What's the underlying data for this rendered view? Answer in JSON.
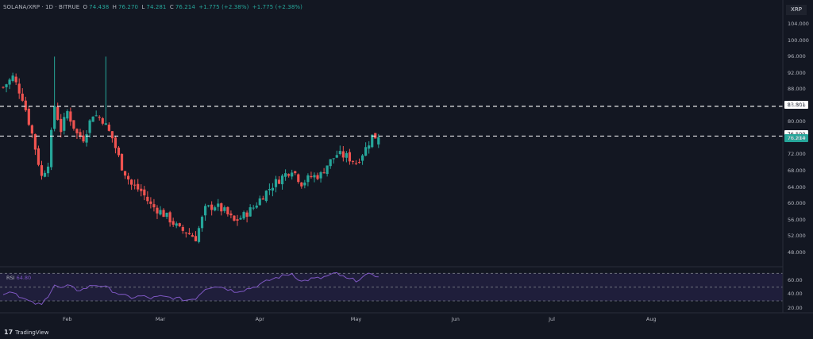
{
  "header": {
    "symbol": "SOLANA/XRP · 1D · BITRUE",
    "open_label": "O",
    "open": "74.438",
    "high_label": "H",
    "high": "76.270",
    "low_label": "L",
    "low": "74.281",
    "close_label": "C",
    "close": "76.214",
    "change": "+1.775 (+2.38%)",
    "change2": "+1.775 (+2.38%)"
  },
  "symbol_badge": "XRP",
  "price_tags": {
    "level_upper": "83.801",
    "level_lower": "76.500",
    "last_price": "76.214"
  },
  "rsi": {
    "label": "RSI",
    "value": "64.80"
  },
  "footer": {
    "brand": "TradingView",
    "logo": "17"
  },
  "colors": {
    "background": "#131722",
    "up": "#26a69a",
    "down": "#ef5350",
    "rsi_line": "#7e57c2",
    "rsi_band": "#2a2550",
    "dashed_level": "#ffffff"
  },
  "chart_data": {
    "type": "candlestick",
    "y_ticks": [
      104.0,
      100.0,
      96.0,
      92.0,
      88.0,
      84.0,
      80.0,
      76.0,
      72.0,
      68.0,
      64.0,
      60.0,
      56.0,
      52.0,
      48.0
    ],
    "y_tick_labels": [
      "104.000",
      "100.000",
      "96.000",
      "92.000",
      "88.000",
      "84.000",
      "80.000",
      "76.000",
      "72.000",
      "68.000",
      "64.000",
      "60.000",
      "56.000",
      "52.000",
      "48.000"
    ],
    "ylim": [
      45.2,
      106.0
    ],
    "x_ticks": [
      "Feb",
      "Mar",
      "Apr",
      "May",
      "Jun",
      "Jul",
      "Aug"
    ],
    "x_tick_days": [
      20,
      49,
      80,
      110,
      141,
      171,
      202
    ],
    "x_range_days": [
      0,
      244
    ],
    "horizontal_levels": [
      83.801,
      76.5
    ],
    "last_price": 76.214,
    "close_path": [
      [
        0,
        88.5
      ],
      [
        3,
        91.0
      ],
      [
        6,
        86.0
      ],
      [
        9,
        77.0
      ],
      [
        12,
        66.5
      ],
      [
        14,
        70.0
      ],
      [
        16,
        84.0
      ],
      [
        18,
        78.0
      ],
      [
        20,
        82.5
      ],
      [
        23,
        77.0
      ],
      [
        25,
        76.0
      ],
      [
        28,
        82.0
      ],
      [
        31,
        80.5
      ],
      [
        34,
        76.0
      ],
      [
        37,
        69.0
      ],
      [
        40,
        64.5
      ],
      [
        43,
        63.0
      ],
      [
        46,
        59.5
      ],
      [
        49,
        58.0
      ],
      [
        52,
        56.0
      ],
      [
        55,
        53.5
      ],
      [
        57,
        53.0
      ],
      [
        60,
        51.5
      ],
      [
        63,
        58.5
      ],
      [
        66,
        59.5
      ],
      [
        69,
        58.0
      ],
      [
        72,
        55.5
      ],
      [
        75,
        57.0
      ],
      [
        78,
        59.0
      ],
      [
        81,
        62.0
      ],
      [
        84,
        64.5
      ],
      [
        87,
        66.5
      ],
      [
        90,
        68.5
      ],
      [
        93,
        65.0
      ],
      [
        96,
        66.5
      ],
      [
        99,
        67.0
      ],
      [
        101,
        69.5
      ],
      [
        104,
        72.0
      ],
      [
        107,
        71.5
      ],
      [
        110,
        70.0
      ],
      [
        113,
        73.5
      ],
      [
        115,
        76.5
      ],
      [
        117,
        76.214
      ]
    ],
    "wicks": [
      {
        "day": 16,
        "high": 96.0
      },
      {
        "day": 32,
        "high": 96.0
      }
    ],
    "rsi": {
      "upper_band": 70,
      "middle": 50,
      "lower_band": 30,
      "y_ticks": [
        60.0,
        40.0,
        20.0
      ],
      "y_tick_labels": [
        "60.00",
        "40.00",
        "20.00"
      ],
      "ylim": [
        15,
        75
      ],
      "path": [
        [
          0,
          41
        ],
        [
          3,
          44
        ],
        [
          6,
          34
        ],
        [
          9,
          27
        ],
        [
          12,
          24
        ],
        [
          14,
          38
        ],
        [
          16,
          54
        ],
        [
          18,
          48
        ],
        [
          20,
          52
        ],
        [
          23,
          46
        ],
        [
          25,
          47
        ],
        [
          28,
          53
        ],
        [
          31,
          52
        ],
        [
          34,
          45
        ],
        [
          37,
          38
        ],
        [
          40,
          35
        ],
        [
          43,
          37
        ],
        [
          46,
          34
        ],
        [
          49,
          36
        ],
        [
          52,
          35
        ],
        [
          55,
          33
        ],
        [
          57,
          31
        ],
        [
          60,
          34
        ],
        [
          63,
          48
        ],
        [
          66,
          52
        ],
        [
          69,
          49
        ],
        [
          72,
          44
        ],
        [
          75,
          46
        ],
        [
          78,
          50
        ],
        [
          81,
          56
        ],
        [
          84,
          62
        ],
        [
          87,
          66
        ],
        [
          90,
          70
        ],
        [
          93,
          58
        ],
        [
          96,
          62
        ],
        [
          99,
          63
        ],
        [
          101,
          66
        ],
        [
          104,
          70
        ],
        [
          107,
          62
        ],
        [
          110,
          60
        ],
        [
          113,
          66
        ],
        [
          115,
          70
        ],
        [
          117,
          64.8
        ]
      ]
    }
  }
}
